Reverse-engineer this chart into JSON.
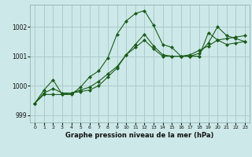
{
  "title": "Graphe pression niveau de la mer (hPa)",
  "bg_color": "#cde8e8",
  "grid_color": "#aacccc",
  "line_color": "#1a5c1a",
  "xlim": [
    -0.5,
    23.5
  ],
  "ylim": [
    998.75,
    1002.75
  ],
  "yticks": [
    999,
    1000,
    1001,
    1002
  ],
  "xticks": [
    0,
    1,
    2,
    3,
    4,
    5,
    6,
    7,
    8,
    9,
    10,
    11,
    12,
    13,
    14,
    15,
    16,
    17,
    18,
    19,
    20,
    21,
    22,
    23
  ],
  "series": [
    [
      999.4,
      999.75,
      999.9,
      999.75,
      999.75,
      999.85,
      999.95,
      1000.15,
      1000.4,
      1000.65,
      1001.05,
      1001.4,
      1001.75,
      1001.35,
      1001.05,
      1001.0,
      1001.0,
      1001.05,
      1001.2,
      1001.35,
      1001.55,
      1001.6,
      1001.65,
      1001.7
    ],
    [
      999.4,
      999.85,
      1000.2,
      999.7,
      999.7,
      999.95,
      1000.3,
      1000.5,
      1000.95,
      1001.75,
      1002.2,
      1002.45,
      1002.55,
      1002.05,
      1001.4,
      1001.3,
      1001.0,
      1001.0,
      1001.0,
      1001.8,
      1001.55,
      1001.4,
      1001.45,
      1001.5
    ],
    [
      999.4,
      999.7,
      999.7,
      999.7,
      999.75,
      999.8,
      999.85,
      1000.0,
      1000.3,
      1000.6,
      1001.05,
      1001.3,
      1001.55,
      1001.25,
      1001.0,
      1001.0,
      1001.0,
      1001.0,
      1001.1,
      1001.45,
      1002.0,
      1001.7,
      1001.6,
      1001.5
    ]
  ]
}
